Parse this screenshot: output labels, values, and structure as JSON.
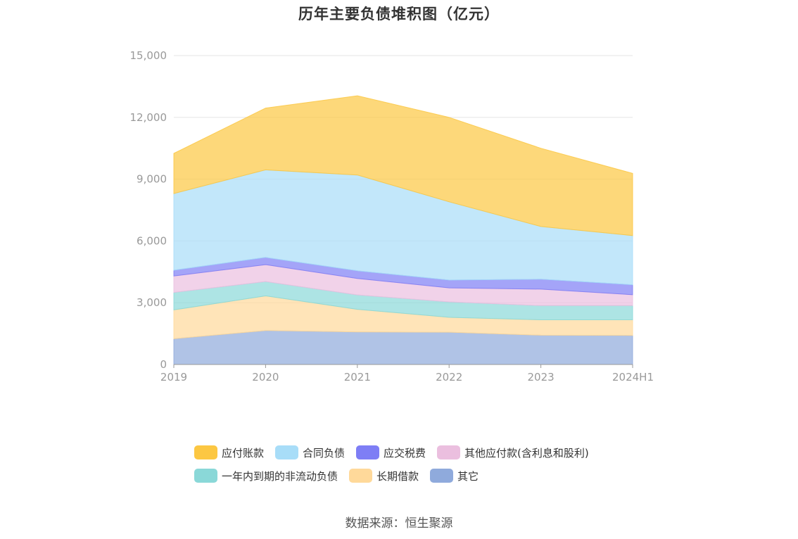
{
  "title": "历年主要负债堆积图（亿元）",
  "source": "数据来源：恒生聚源",
  "chart_data": {
    "type": "area",
    "stacked": true,
    "categories": [
      "2019",
      "2020",
      "2021",
      "2022",
      "2023",
      "2024H1"
    ],
    "ylim": [
      0,
      15000
    ],
    "yticks": [
      "0",
      "3,000",
      "6,000",
      "9,000",
      "12,000",
      "15,000"
    ],
    "ytick_values": [
      0,
      3000,
      6000,
      9000,
      12000,
      15000
    ],
    "grid": true,
    "legend_position": "bottom",
    "series": [
      {
        "name": "其它",
        "color": "#8faadc",
        "values": [
          1250,
          1650,
          1580,
          1570,
          1420,
          1410
        ]
      },
      {
        "name": "长期借款",
        "color": "#ffd99a",
        "values": [
          1400,
          1680,
          1100,
          720,
          750,
          760
        ]
      },
      {
        "name": "一年内到期的非流动负债",
        "color": "#8ad8d8",
        "values": [
          850,
          700,
          700,
          750,
          690,
          690
        ]
      },
      {
        "name": "其他应付款(含利息和股利)",
        "color": "#ebbfdf",
        "values": [
          800,
          820,
          800,
          680,
          800,
          530
        ]
      },
      {
        "name": "应交税费",
        "color": "#7e7ef5",
        "values": [
          280,
          350,
          370,
          380,
          480,
          480
        ]
      },
      {
        "name": "合同负债",
        "color": "#a8ddf8",
        "values": [
          3720,
          4250,
          4650,
          3800,
          2560,
          2390
        ]
      },
      {
        "name": "应付账款",
        "color": "#fcc742",
        "values": [
          1950,
          3000,
          3850,
          4100,
          3800,
          3020
        ]
      }
    ]
  },
  "legend_rows": [
    [
      {
        "label": "应付账款",
        "color": "#fcc742"
      },
      {
        "label": "合同负债",
        "color": "#a8ddf8"
      },
      {
        "label": "应交税费",
        "color": "#7e7ef5"
      },
      {
        "label": "其他应付款(含利息和股利)",
        "color": "#ebbfdf"
      }
    ],
    [
      {
        "label": "一年内到期的非流动负债",
        "color": "#8ad8d8"
      },
      {
        "label": "长期借款",
        "color": "#ffd99a"
      },
      {
        "label": "其它",
        "color": "#8faadc"
      }
    ]
  ]
}
